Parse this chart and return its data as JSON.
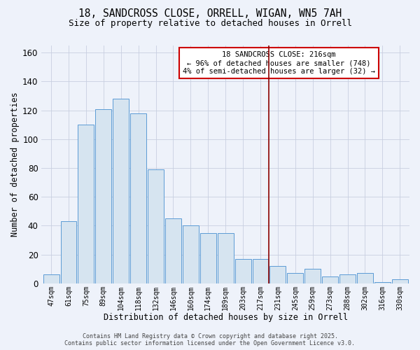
{
  "title_line1": "18, SANDCROSS CLOSE, ORRELL, WIGAN, WN5 7AH",
  "title_line2": "Size of property relative to detached houses in Orrell",
  "xlabel": "Distribution of detached houses by size in Orrell",
  "ylabel": "Number of detached properties",
  "categories": [
    "47sqm",
    "61sqm",
    "75sqm",
    "89sqm",
    "104sqm",
    "118sqm",
    "132sqm",
    "146sqm",
    "160sqm",
    "174sqm",
    "189sqm",
    "203sqm",
    "217sqm",
    "231sqm",
    "245sqm",
    "259sqm",
    "273sqm",
    "288sqm",
    "302sqm",
    "316sqm",
    "330sqm"
  ],
  "values": [
    6,
    43,
    110,
    121,
    128,
    118,
    79,
    45,
    40,
    35,
    35,
    17,
    17,
    12,
    7,
    10,
    5,
    6,
    7,
    1,
    3
  ],
  "bar_color": "#d6e4f0",
  "bar_edge_color": "#5b9bd5",
  "reference_line_color": "#8b0000",
  "annotation_title": "18 SANDCROSS CLOSE: 216sqm",
  "annotation_line1": "← 96% of detached houses are smaller (748)",
  "annotation_line2": "4% of semi-detached houses are larger (32) →",
  "annotation_border_color": "#cc0000",
  "ylim": [
    0,
    165
  ],
  "yticks": [
    0,
    20,
    40,
    60,
    80,
    100,
    120,
    140,
    160
  ],
  "footer_line1": "Contains HM Land Registry data © Crown copyright and database right 2025.",
  "footer_line2": "Contains public sector information licensed under the Open Government Licence v3.0.",
  "bg_color": "#eef2fa",
  "grid_color": "#c8cfe0"
}
